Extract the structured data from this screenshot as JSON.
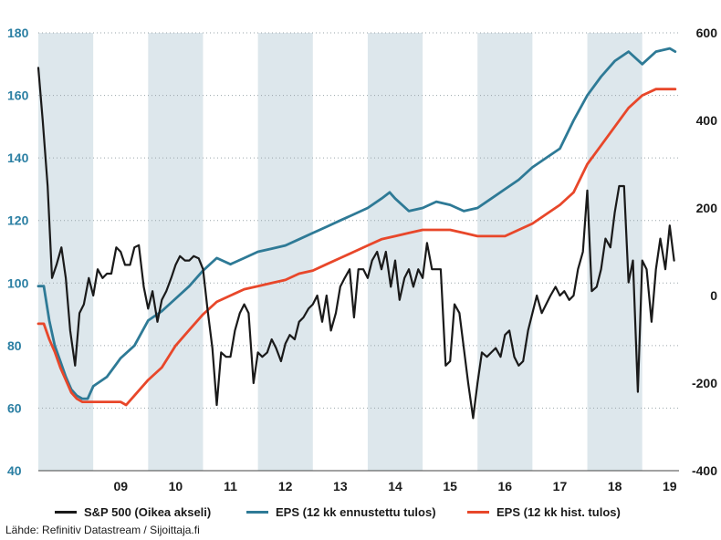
{
  "chart_data": {
    "type": "line",
    "x_ticks": [
      "09",
      "10",
      "11",
      "12",
      "13",
      "14",
      "15",
      "16",
      "17",
      "18",
      "19"
    ],
    "left_axis": {
      "ticks": [
        40,
        60,
        80,
        100,
        120,
        140,
        160,
        180
      ],
      "ylim": [
        40,
        180
      ],
      "color": "#2b7fa3"
    },
    "right_axis": {
      "ticks": [
        -400,
        -200,
        0,
        200,
        400,
        600
      ],
      "ylim": [
        -400,
        600
      ],
      "color": "#1a1a1a"
    },
    "shaded_years": [
      2008,
      2010,
      2012,
      2014,
      2016,
      2018
    ],
    "grid": "horizontal dotted",
    "series": [
      {
        "name": "S&P 500 (Oikea akseli)",
        "axis": "right",
        "color": "#1a1a1a",
        "points": [
          [
            2008.0,
            520
          ],
          [
            2008.08,
            400
          ],
          [
            2008.17,
            250
          ],
          [
            2008.25,
            40
          ],
          [
            2008.33,
            70
          ],
          [
            2008.42,
            110
          ],
          [
            2008.5,
            40
          ],
          [
            2008.58,
            -80
          ],
          [
            2008.67,
            -160
          ],
          [
            2008.75,
            -40
          ],
          [
            2008.83,
            -20
          ],
          [
            2008.92,
            40
          ],
          [
            2009.0,
            0
          ],
          [
            2009.08,
            60
          ],
          [
            2009.17,
            40
          ],
          [
            2009.25,
            50
          ],
          [
            2009.33,
            50
          ],
          [
            2009.42,
            110
          ],
          [
            2009.5,
            100
          ],
          [
            2009.58,
            70
          ],
          [
            2009.67,
            70
          ],
          [
            2009.75,
            110
          ],
          [
            2009.83,
            115
          ],
          [
            2009.92,
            20
          ],
          [
            2010.0,
            -30
          ],
          [
            2010.08,
            10
          ],
          [
            2010.17,
            -60
          ],
          [
            2010.25,
            -10
          ],
          [
            2010.33,
            10
          ],
          [
            2010.42,
            40
          ],
          [
            2010.5,
            70
          ],
          [
            2010.58,
            90
          ],
          [
            2010.67,
            80
          ],
          [
            2010.75,
            80
          ],
          [
            2010.83,
            90
          ],
          [
            2010.92,
            85
          ],
          [
            2011.0,
            60
          ],
          [
            2011.08,
            -30
          ],
          [
            2011.17,
            -120
          ],
          [
            2011.25,
            -250
          ],
          [
            2011.33,
            -130
          ],
          [
            2011.42,
            -140
          ],
          [
            2011.5,
            -140
          ],
          [
            2011.58,
            -80
          ],
          [
            2011.67,
            -40
          ],
          [
            2011.75,
            -20
          ],
          [
            2011.83,
            -40
          ],
          [
            2011.92,
            -200
          ],
          [
            2012.0,
            -130
          ],
          [
            2012.08,
            -140
          ],
          [
            2012.17,
            -130
          ],
          [
            2012.25,
            -100
          ],
          [
            2012.33,
            -120
          ],
          [
            2012.42,
            -150
          ],
          [
            2012.5,
            -110
          ],
          [
            2012.58,
            -90
          ],
          [
            2012.67,
            -100
          ],
          [
            2012.75,
            -60
          ],
          [
            2012.83,
            -50
          ],
          [
            2012.92,
            -30
          ],
          [
            2013.0,
            -20
          ],
          [
            2013.08,
            0
          ],
          [
            2013.17,
            -60
          ],
          [
            2013.25,
            0
          ],
          [
            2013.33,
            -80
          ],
          [
            2013.42,
            -40
          ],
          [
            2013.5,
            20
          ],
          [
            2013.58,
            40
          ],
          [
            2013.67,
            60
          ],
          [
            2013.75,
            -50
          ],
          [
            2013.83,
            60
          ],
          [
            2013.92,
            60
          ],
          [
            2014.0,
            40
          ],
          [
            2014.08,
            80
          ],
          [
            2014.17,
            100
          ],
          [
            2014.25,
            60
          ],
          [
            2014.33,
            100
          ],
          [
            2014.42,
            20
          ],
          [
            2014.5,
            80
          ],
          [
            2014.58,
            -10
          ],
          [
            2014.67,
            40
          ],
          [
            2014.75,
            60
          ],
          [
            2014.83,
            20
          ],
          [
            2014.92,
            60
          ],
          [
            2015.0,
            40
          ],
          [
            2015.08,
            120
          ],
          [
            2015.17,
            60
          ],
          [
            2015.25,
            60
          ],
          [
            2015.33,
            60
          ],
          [
            2015.42,
            -160
          ],
          [
            2015.5,
            -150
          ],
          [
            2015.58,
            -20
          ],
          [
            2015.67,
            -40
          ],
          [
            2015.75,
            -120
          ],
          [
            2015.83,
            -200
          ],
          [
            2015.92,
            -280
          ],
          [
            2016.0,
            -200
          ],
          [
            2016.08,
            -130
          ],
          [
            2016.17,
            -140
          ],
          [
            2016.25,
            -130
          ],
          [
            2016.33,
            -120
          ],
          [
            2016.42,
            -140
          ],
          [
            2016.5,
            -90
          ],
          [
            2016.58,
            -80
          ],
          [
            2016.67,
            -140
          ],
          [
            2016.75,
            -160
          ],
          [
            2016.83,
            -150
          ],
          [
            2016.92,
            -80
          ],
          [
            2017.0,
            -40
          ],
          [
            2017.08,
            0
          ],
          [
            2017.17,
            -40
          ],
          [
            2017.25,
            -20
          ],
          [
            2017.33,
            0
          ],
          [
            2017.42,
            20
          ],
          [
            2017.5,
            0
          ],
          [
            2017.58,
            10
          ],
          [
            2017.67,
            -10
          ],
          [
            2017.75,
            0
          ],
          [
            2017.83,
            60
          ],
          [
            2017.92,
            100
          ],
          [
            2018.0,
            240
          ],
          [
            2018.08,
            10
          ],
          [
            2018.17,
            20
          ],
          [
            2018.25,
            60
          ],
          [
            2018.33,
            130
          ],
          [
            2018.42,
            110
          ],
          [
            2018.5,
            190
          ],
          [
            2018.58,
            250
          ],
          [
            2018.67,
            250
          ],
          [
            2018.75,
            30
          ],
          [
            2018.83,
            80
          ],
          [
            2018.92,
            -220
          ],
          [
            2019.0,
            80
          ],
          [
            2019.08,
            60
          ],
          [
            2019.17,
            -60
          ],
          [
            2019.25,
            60
          ],
          [
            2019.33,
            130
          ],
          [
            2019.42,
            60
          ],
          [
            2019.5,
            160
          ],
          [
            2019.58,
            80
          ]
        ]
      },
      {
        "name": "EPS (12 kk ennustettu tulos)",
        "axis": "left",
        "color": "#2e7a96",
        "points": [
          [
            2008.0,
            99
          ],
          [
            2008.1,
            99
          ],
          [
            2008.2,
            88
          ],
          [
            2008.3,
            80
          ],
          [
            2008.4,
            75
          ],
          [
            2008.5,
            70
          ],
          [
            2008.6,
            66
          ],
          [
            2008.7,
            64
          ],
          [
            2008.8,
            63
          ],
          [
            2008.9,
            63
          ],
          [
            2009.0,
            67
          ],
          [
            2009.25,
            70
          ],
          [
            2009.5,
            76
          ],
          [
            2009.75,
            80
          ],
          [
            2010.0,
            88
          ],
          [
            2010.25,
            91
          ],
          [
            2010.5,
            95
          ],
          [
            2010.75,
            99
          ],
          [
            2011.0,
            104
          ],
          [
            2011.25,
            108
          ],
          [
            2011.5,
            106
          ],
          [
            2011.75,
            108
          ],
          [
            2012.0,
            110
          ],
          [
            2012.25,
            111
          ],
          [
            2012.5,
            112
          ],
          [
            2012.75,
            114
          ],
          [
            2013.0,
            116
          ],
          [
            2013.25,
            118
          ],
          [
            2013.5,
            120
          ],
          [
            2013.75,
            122
          ],
          [
            2014.0,
            124
          ],
          [
            2014.25,
            127
          ],
          [
            2014.4,
            129
          ],
          [
            2014.5,
            127
          ],
          [
            2014.75,
            123
          ],
          [
            2015.0,
            124
          ],
          [
            2015.25,
            126
          ],
          [
            2015.5,
            125
          ],
          [
            2015.75,
            123
          ],
          [
            2016.0,
            124
          ],
          [
            2016.25,
            127
          ],
          [
            2016.5,
            130
          ],
          [
            2016.75,
            133
          ],
          [
            2017.0,
            137
          ],
          [
            2017.25,
            140
          ],
          [
            2017.5,
            143
          ],
          [
            2017.75,
            152
          ],
          [
            2018.0,
            160
          ],
          [
            2018.25,
            166
          ],
          [
            2018.5,
            171
          ],
          [
            2018.75,
            174
          ],
          [
            2019.0,
            170
          ],
          [
            2019.25,
            174
          ],
          [
            2019.5,
            175
          ],
          [
            2019.6,
            174
          ]
        ]
      },
      {
        "name": "EPS (12 kk hist. tulos)",
        "axis": "left",
        "color": "#e8472a",
        "points": [
          [
            2008.0,
            87
          ],
          [
            2008.1,
            87
          ],
          [
            2008.2,
            82
          ],
          [
            2008.3,
            78
          ],
          [
            2008.4,
            73
          ],
          [
            2008.5,
            69
          ],
          [
            2008.6,
            65
          ],
          [
            2008.7,
            63
          ],
          [
            2008.8,
            62
          ],
          [
            2008.9,
            62
          ],
          [
            2009.0,
            62
          ],
          [
            2009.25,
            62
          ],
          [
            2009.5,
            62
          ],
          [
            2009.6,
            61
          ],
          [
            2009.75,
            64
          ],
          [
            2010.0,
            69
          ],
          [
            2010.25,
            73
          ],
          [
            2010.5,
            80
          ],
          [
            2010.75,
            85
          ],
          [
            2011.0,
            90
          ],
          [
            2011.25,
            94
          ],
          [
            2011.5,
            96
          ],
          [
            2011.75,
            98
          ],
          [
            2012.0,
            99
          ],
          [
            2012.25,
            100
          ],
          [
            2012.5,
            101
          ],
          [
            2012.75,
            103
          ],
          [
            2013.0,
            104
          ],
          [
            2013.25,
            106
          ],
          [
            2013.5,
            108
          ],
          [
            2013.75,
            110
          ],
          [
            2014.0,
            112
          ],
          [
            2014.25,
            114
          ],
          [
            2014.5,
            115
          ],
          [
            2014.75,
            116
          ],
          [
            2015.0,
            117
          ],
          [
            2015.25,
            117
          ],
          [
            2015.5,
            117
          ],
          [
            2015.75,
            116
          ],
          [
            2016.0,
            115
          ],
          [
            2016.25,
            115
          ],
          [
            2016.5,
            115
          ],
          [
            2016.75,
            117
          ],
          [
            2017.0,
            119
          ],
          [
            2017.25,
            122
          ],
          [
            2017.5,
            125
          ],
          [
            2017.75,
            129
          ],
          [
            2018.0,
            138
          ],
          [
            2018.25,
            144
          ],
          [
            2018.5,
            150
          ],
          [
            2018.75,
            156
          ],
          [
            2019.0,
            160
          ],
          [
            2019.25,
            162
          ],
          [
            2019.5,
            162
          ],
          [
            2019.6,
            162
          ]
        ]
      }
    ]
  },
  "legend": {
    "items": [
      {
        "label": "S&P 500 (Oikea akseli)",
        "color": "#1a1a1a"
      },
      {
        "label": "EPS (12 kk ennustettu tulos)",
        "color": "#2e7a96"
      },
      {
        "label": "EPS (12 kk hist. tulos)",
        "color": "#e8472a"
      }
    ]
  },
  "source": "Lähde: Refinitiv Datastream / Sijoittaja.fi"
}
